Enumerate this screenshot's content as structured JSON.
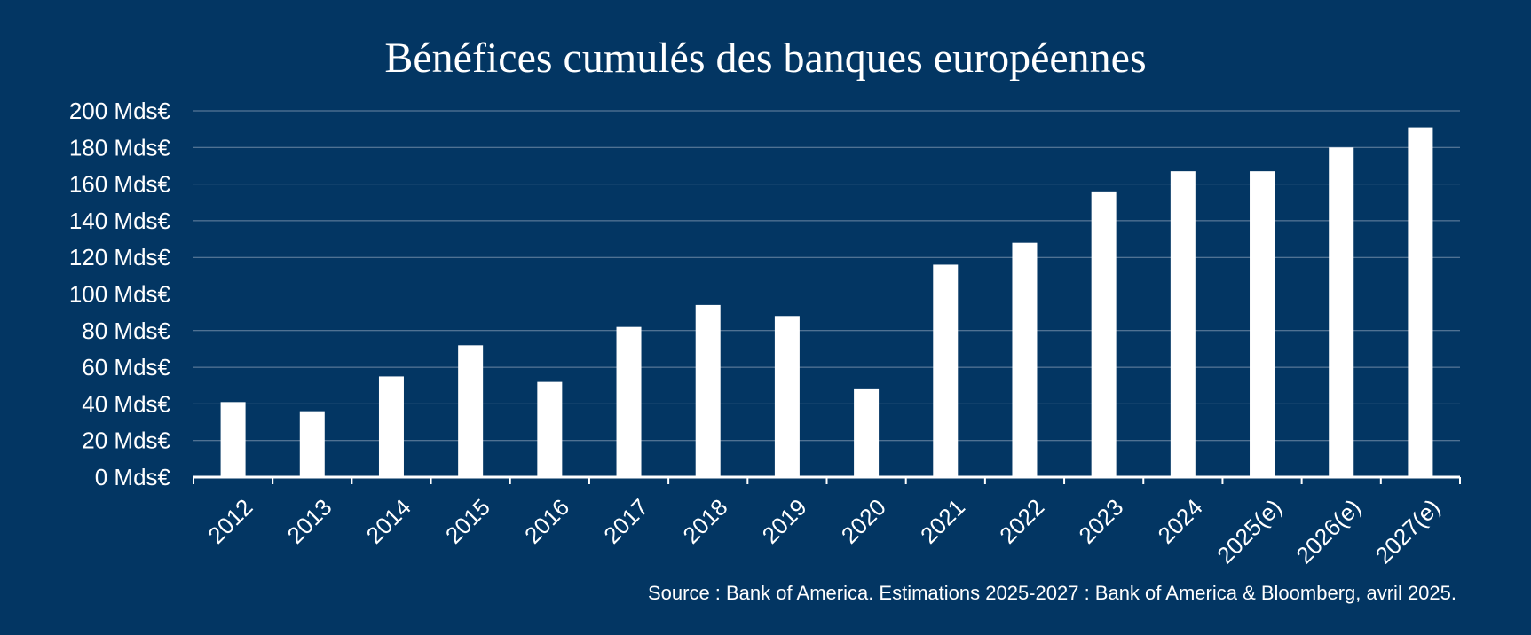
{
  "chart_data": {
    "type": "bar",
    "title": "Bénéfices cumulés des banques européennes",
    "categories": [
      "2012",
      "2013",
      "2014",
      "2015",
      "2016",
      "2017",
      "2018",
      "2019",
      "2020",
      "2021",
      "2022",
      "2023",
      "2024",
      "2025(e)",
      "2026(e)",
      "2027(e)"
    ],
    "values": [
      41,
      36,
      55,
      72,
      52,
      82,
      94,
      88,
      48,
      116,
      128,
      156,
      167,
      167,
      180,
      191
    ],
    "unit": "Mds€",
    "y_ticks": [
      "0 Mds€",
      "20 Mds€",
      "40 Mds€",
      "60 Mds€",
      "80 Mds€",
      "100 Mds€",
      "120 Mds€",
      "140 Mds€",
      "160 Mds€",
      "180 Mds€",
      "200 Mds€"
    ],
    "ylim": [
      0,
      200
    ],
    "grid": true,
    "xlabel": "",
    "ylabel": ""
  },
  "source": "Source : Bank of America. Estimations 2025-2027 : Bank of America & Bloomberg, avril 2025.",
  "colors": {
    "background": "#033663",
    "bar": "#ffffff",
    "text": "#ffffff",
    "gridline": "#6b86a3",
    "axis": "#ffffff"
  }
}
